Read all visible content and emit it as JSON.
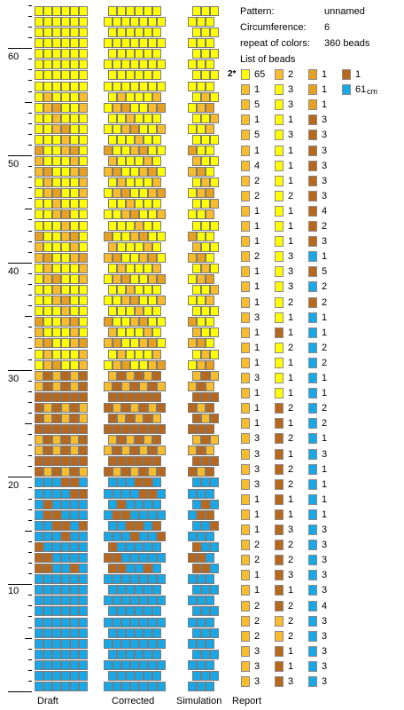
{
  "palette": {
    "empty": "#ffffff",
    "yellow": "#ffff00",
    "light_orange": "#f8bc2c",
    "orange": "#e8a020",
    "brown": "#b8681c",
    "blue": "#18a8e8"
  },
  "ruler_labels": [
    "10",
    "20",
    "30",
    "40",
    "50",
    "60"
  ],
  "panels": {
    "draft_label": "Draft",
    "corrected_label": "Corrected",
    "simulation_label": "Simulation",
    "report_label": "Report"
  },
  "pattern_info": {
    "pattern_label": "Pattern:",
    "pattern_value": "unnamed",
    "circumference_label": "Circumference:",
    "circumference_value": "6",
    "repeat_label": "repeat of colors:",
    "repeat_value": "360 beads",
    "list_label": "List of beads",
    "current_marker": "2*",
    "length_value": "61",
    "length_unit": "cm"
  },
  "bead_columns": [
    [
      [
        "yellow",
        "65"
      ],
      [
        "light_orange",
        "1"
      ],
      [
        "light_orange",
        "5"
      ],
      [
        "light_orange",
        "1"
      ],
      [
        "light_orange",
        "5"
      ],
      [
        "light_orange",
        "1"
      ],
      [
        "light_orange",
        "4"
      ],
      [
        "light_orange",
        "2"
      ],
      [
        "light_orange",
        "2"
      ],
      [
        "light_orange",
        "1"
      ],
      [
        "light_orange",
        "1"
      ],
      [
        "light_orange",
        "1"
      ],
      [
        "light_orange",
        "2"
      ],
      [
        "light_orange",
        "1"
      ],
      [
        "light_orange",
        "1"
      ],
      [
        "light_orange",
        "1"
      ],
      [
        "light_orange",
        "3"
      ],
      [
        "light_orange",
        "1"
      ],
      [
        "light_orange",
        "1"
      ],
      [
        "light_orange",
        "1"
      ],
      [
        "light_orange",
        "3"
      ],
      [
        "light_orange",
        "1"
      ],
      [
        "light_orange",
        "1"
      ],
      [
        "light_orange",
        "1"
      ],
      [
        "light_orange",
        "3"
      ],
      [
        "light_orange",
        "3"
      ],
      [
        "light_orange",
        "3"
      ],
      [
        "light_orange",
        "3"
      ],
      [
        "light_orange",
        "1"
      ],
      [
        "light_orange",
        "1"
      ],
      [
        "light_orange",
        "1"
      ],
      [
        "light_orange",
        "2"
      ],
      [
        "light_orange",
        "2"
      ],
      [
        "light_orange",
        "1"
      ],
      [
        "light_orange",
        "1"
      ],
      [
        "light_orange",
        "2"
      ],
      [
        "light_orange",
        "2"
      ],
      [
        "light_orange",
        "2"
      ],
      [
        "light_orange",
        "3"
      ],
      [
        "light_orange",
        "3"
      ],
      [
        "light_orange",
        "3"
      ]
    ],
    [
      [
        "light_orange",
        "2"
      ],
      [
        "yellow",
        "3"
      ],
      [
        "yellow",
        "3"
      ],
      [
        "yellow",
        "1"
      ],
      [
        "yellow",
        "3"
      ],
      [
        "yellow",
        "1"
      ],
      [
        "yellow",
        "1"
      ],
      [
        "yellow",
        "1"
      ],
      [
        "yellow",
        "2"
      ],
      [
        "yellow",
        "1"
      ],
      [
        "yellow",
        "1"
      ],
      [
        "yellow",
        "1"
      ],
      [
        "yellow",
        "3"
      ],
      [
        "yellow",
        "3"
      ],
      [
        "yellow",
        "3"
      ],
      [
        "yellow",
        "2"
      ],
      [
        "yellow",
        "1"
      ],
      [
        "brown",
        "1"
      ],
      [
        "yellow",
        "2"
      ],
      [
        "yellow",
        "1"
      ],
      [
        "yellow",
        "1"
      ],
      [
        "yellow",
        "1"
      ],
      [
        "brown",
        "2"
      ],
      [
        "brown",
        "1"
      ],
      [
        "brown",
        "2"
      ],
      [
        "brown",
        "1"
      ],
      [
        "brown",
        "2"
      ],
      [
        "brown",
        "2"
      ],
      [
        "brown",
        "1"
      ],
      [
        "brown",
        "1"
      ],
      [
        "brown",
        "3"
      ],
      [
        "brown",
        "2"
      ],
      [
        "brown",
        "2"
      ],
      [
        "brown",
        "3"
      ],
      [
        "brown",
        "1"
      ],
      [
        "brown",
        "2"
      ],
      [
        "light_orange",
        "2"
      ],
      [
        "light_orange",
        "2"
      ],
      [
        "brown",
        "1"
      ],
      [
        "brown",
        "1"
      ],
      [
        "brown",
        "3"
      ]
    ],
    [
      [
        "orange",
        "1"
      ],
      [
        "orange",
        "1"
      ],
      [
        "orange",
        "1"
      ],
      [
        "brown",
        "3"
      ],
      [
        "brown",
        "3"
      ],
      [
        "brown",
        "3"
      ],
      [
        "brown",
        "3"
      ],
      [
        "brown",
        "3"
      ],
      [
        "brown",
        "3"
      ],
      [
        "brown",
        "4"
      ],
      [
        "brown",
        "2"
      ],
      [
        "brown",
        "3"
      ],
      [
        "blue",
        "1"
      ],
      [
        "brown",
        "5"
      ],
      [
        "blue",
        "2"
      ],
      [
        "brown",
        "2"
      ],
      [
        "blue",
        "1"
      ],
      [
        "blue",
        "1"
      ],
      [
        "blue",
        "2"
      ],
      [
        "blue",
        "2"
      ],
      [
        "blue",
        "1"
      ],
      [
        "blue",
        "1"
      ],
      [
        "blue",
        "2"
      ],
      [
        "blue",
        "2"
      ],
      [
        "blue",
        "1"
      ],
      [
        "blue",
        "3"
      ],
      [
        "blue",
        "1"
      ],
      [
        "blue",
        "1"
      ],
      [
        "blue",
        "1"
      ],
      [
        "blue",
        "1"
      ],
      [
        "blue",
        "3"
      ],
      [
        "blue",
        "3"
      ],
      [
        "blue",
        "3"
      ],
      [
        "blue",
        "3"
      ],
      [
        "blue",
        "3"
      ],
      [
        "blue",
        "4"
      ],
      [
        "blue",
        "3"
      ],
      [
        "blue",
        "3"
      ],
      [
        "blue",
        "3"
      ],
      [
        "blue",
        "3"
      ],
      [
        "blue",
        "3"
      ]
    ],
    [
      [
        "brown",
        "1"
      ],
      [
        "blue",
        "61"
      ]
    ]
  ]
}
